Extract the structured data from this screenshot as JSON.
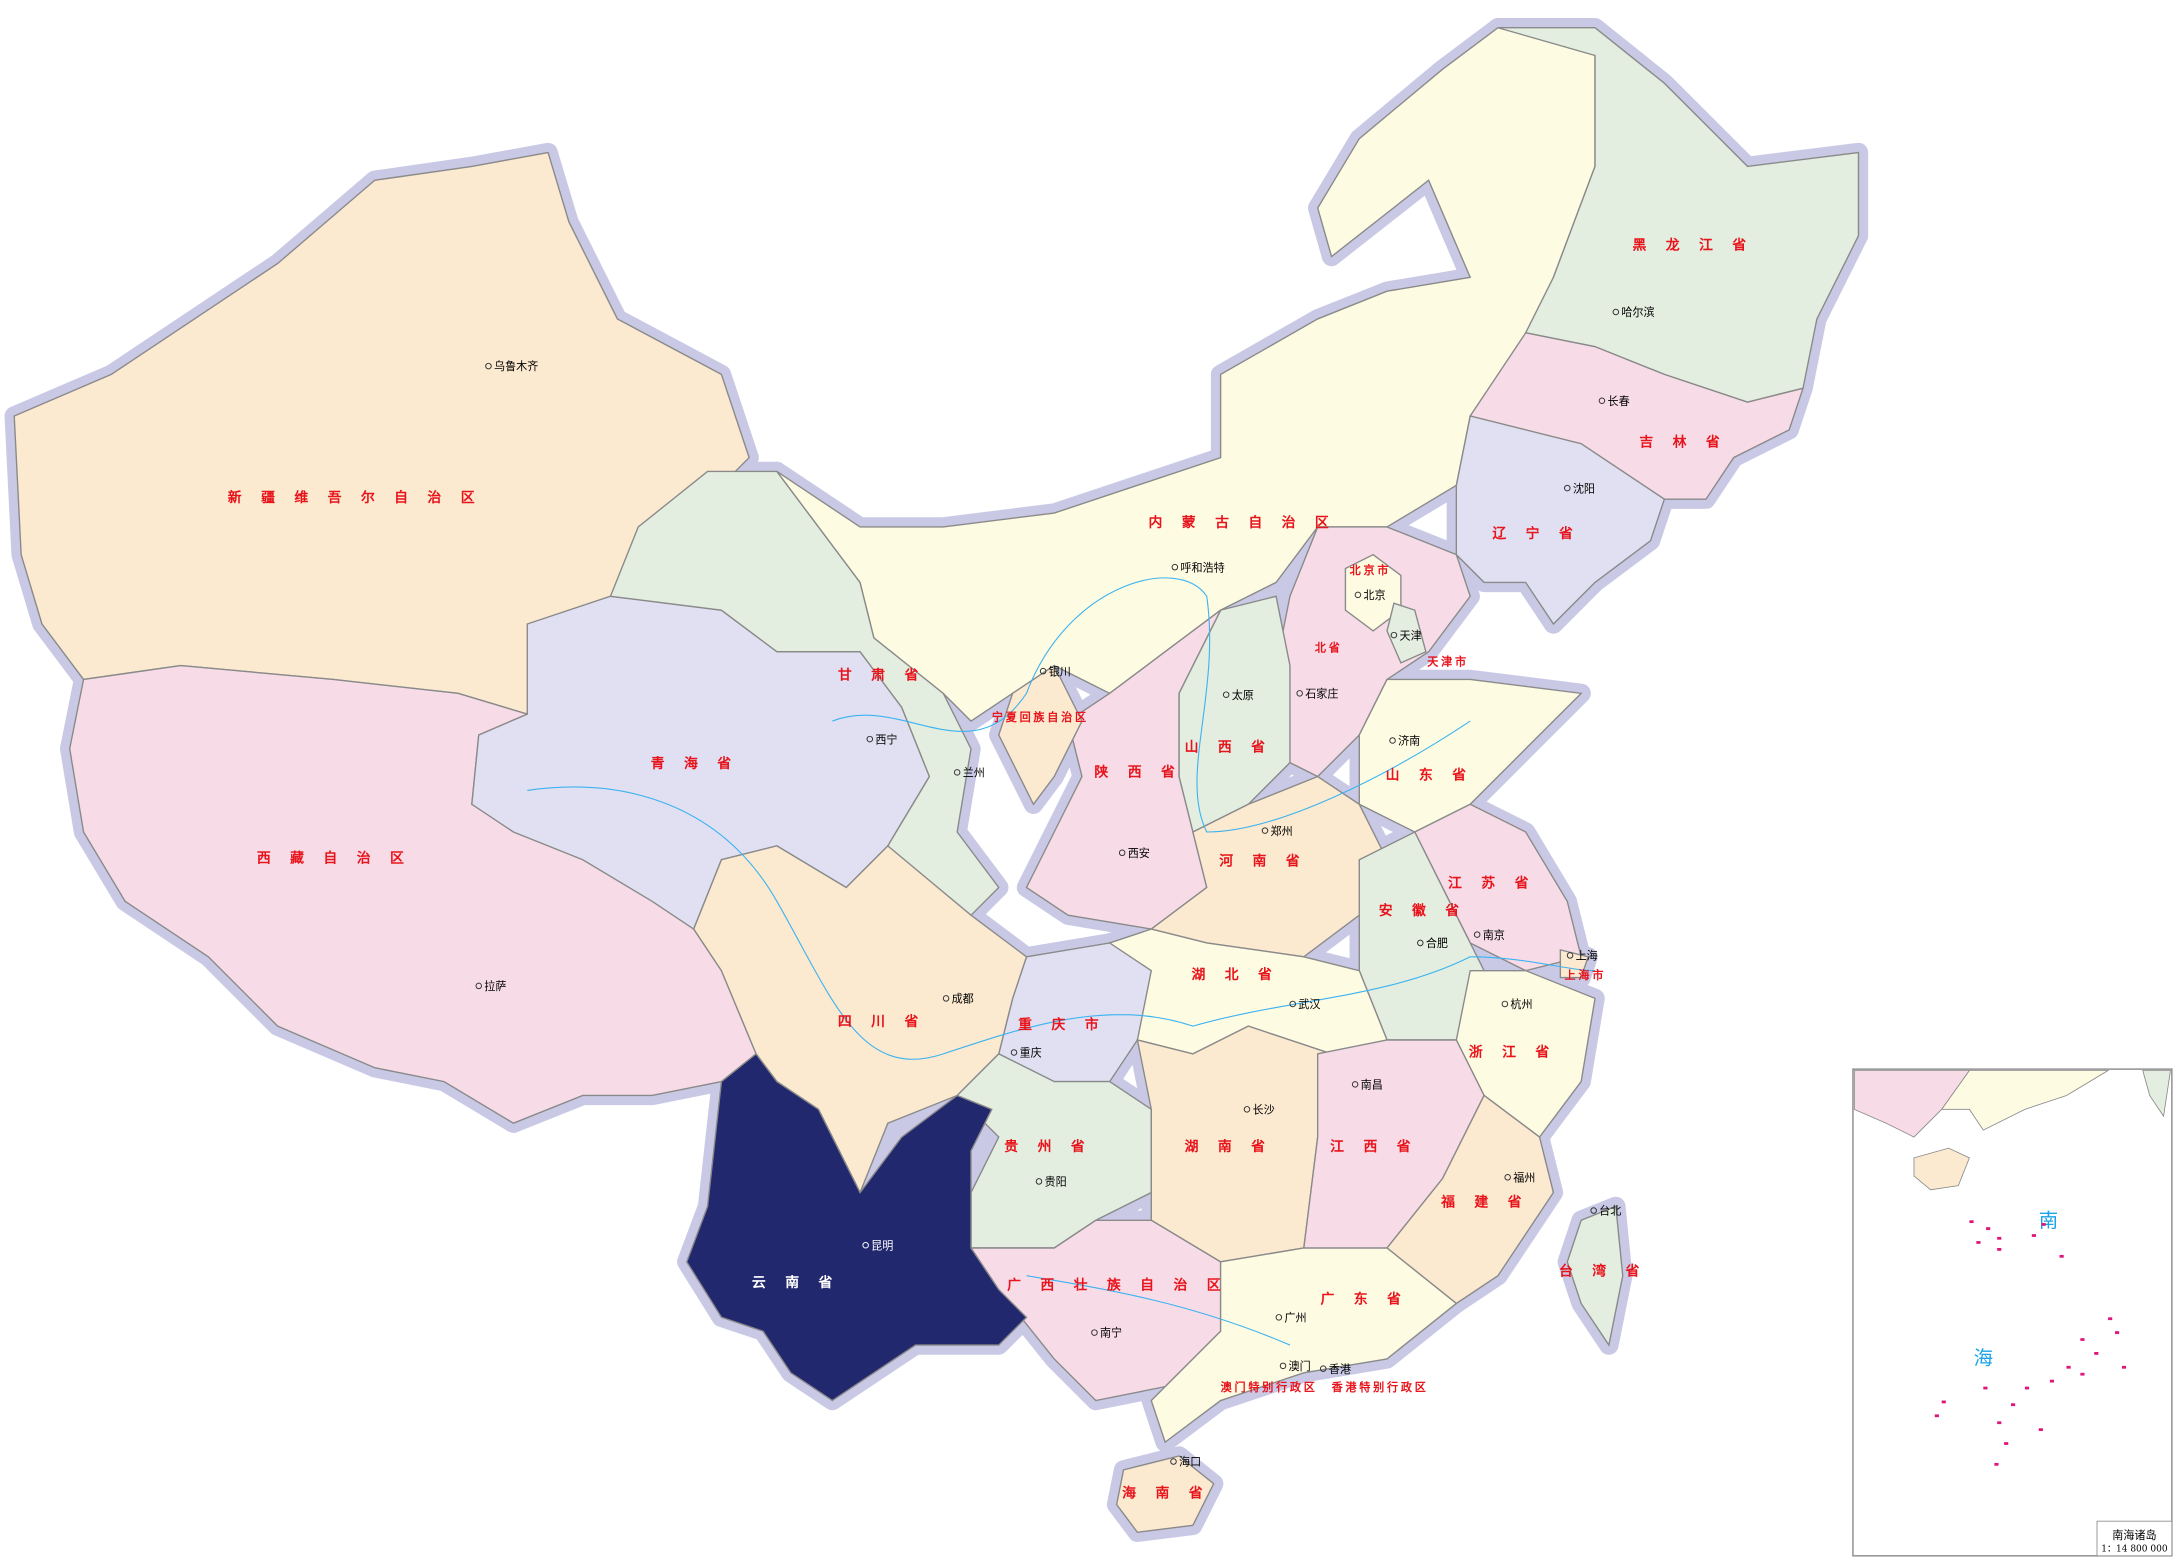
{
  "map": {
    "highlighted_province": "云南省",
    "colors": {
      "highlight": "#22286e",
      "orange": "#fbe9d0",
      "pink": "#f7dce8",
      "green": "#e3eee0",
      "lavender": "#e0e0f2",
      "yellow": "#fefbe3",
      "border_halo": "#c9c9e6",
      "province_label": "#e8141c",
      "river": "#3cb3f0",
      "islands": "#e0147a"
    },
    "provinces": [
      {
        "name": "新疆维吾尔自治区"
      },
      {
        "name": "西藏自治区"
      },
      {
        "name": "青海省"
      },
      {
        "name": "甘肃省"
      },
      {
        "name": "内蒙古自治区"
      },
      {
        "name": "黑龙江省"
      },
      {
        "name": "吉林省"
      },
      {
        "name": "辽宁省"
      },
      {
        "name": "北省"
      },
      {
        "name": "北京市"
      },
      {
        "name": "天津市"
      },
      {
        "name": "山西省"
      },
      {
        "name": "陕西省"
      },
      {
        "name": "宁夏回族自治区"
      },
      {
        "name": "山东省"
      },
      {
        "name": "河南省"
      },
      {
        "name": "江苏省"
      },
      {
        "name": "安徽省"
      },
      {
        "name": "上海市"
      },
      {
        "name": "浙江省"
      },
      {
        "name": "湖北省"
      },
      {
        "name": "重庆市"
      },
      {
        "name": "四川省"
      },
      {
        "name": "贵州省"
      },
      {
        "name": "湖南省"
      },
      {
        "name": "江西省"
      },
      {
        "name": "福建省"
      },
      {
        "name": "广西壮族自治区"
      },
      {
        "name": "广东省"
      },
      {
        "name": "云南省"
      },
      {
        "name": "海南省"
      },
      {
        "name": "台湾省"
      },
      {
        "name": "澳门特别行政区"
      },
      {
        "name": "香港特别行政区"
      }
    ],
    "capitals": [
      {
        "name": "乌鲁木齐"
      },
      {
        "name": "拉萨"
      },
      {
        "name": "西宁"
      },
      {
        "name": "兰州"
      },
      {
        "name": "银川"
      },
      {
        "name": "呼和浩特"
      },
      {
        "name": "太原"
      },
      {
        "name": "石家庄"
      },
      {
        "name": "北京"
      },
      {
        "name": "天津"
      },
      {
        "name": "济南"
      },
      {
        "name": "郑州"
      },
      {
        "name": "西安"
      },
      {
        "name": "合肥"
      },
      {
        "name": "南京"
      },
      {
        "name": "上海"
      },
      {
        "name": "杭州"
      },
      {
        "name": "武汉"
      },
      {
        "name": "成都"
      },
      {
        "name": "重庆"
      },
      {
        "name": "贵阳"
      },
      {
        "name": "长沙"
      },
      {
        "name": "南昌"
      },
      {
        "name": "福州"
      },
      {
        "name": "台北"
      },
      {
        "name": "广州"
      },
      {
        "name": "南宁"
      },
      {
        "name": "昆明"
      },
      {
        "name": "澳门"
      },
      {
        "name": "香港"
      },
      {
        "name": "海口"
      },
      {
        "name": "哈尔滨"
      },
      {
        "name": "长春"
      },
      {
        "name": "沈阳"
      }
    ],
    "inset": {
      "title": "南海诸岛",
      "scale": "1：14 800 000",
      "sea_label_1": "南",
      "sea_label_2": "海"
    }
  }
}
